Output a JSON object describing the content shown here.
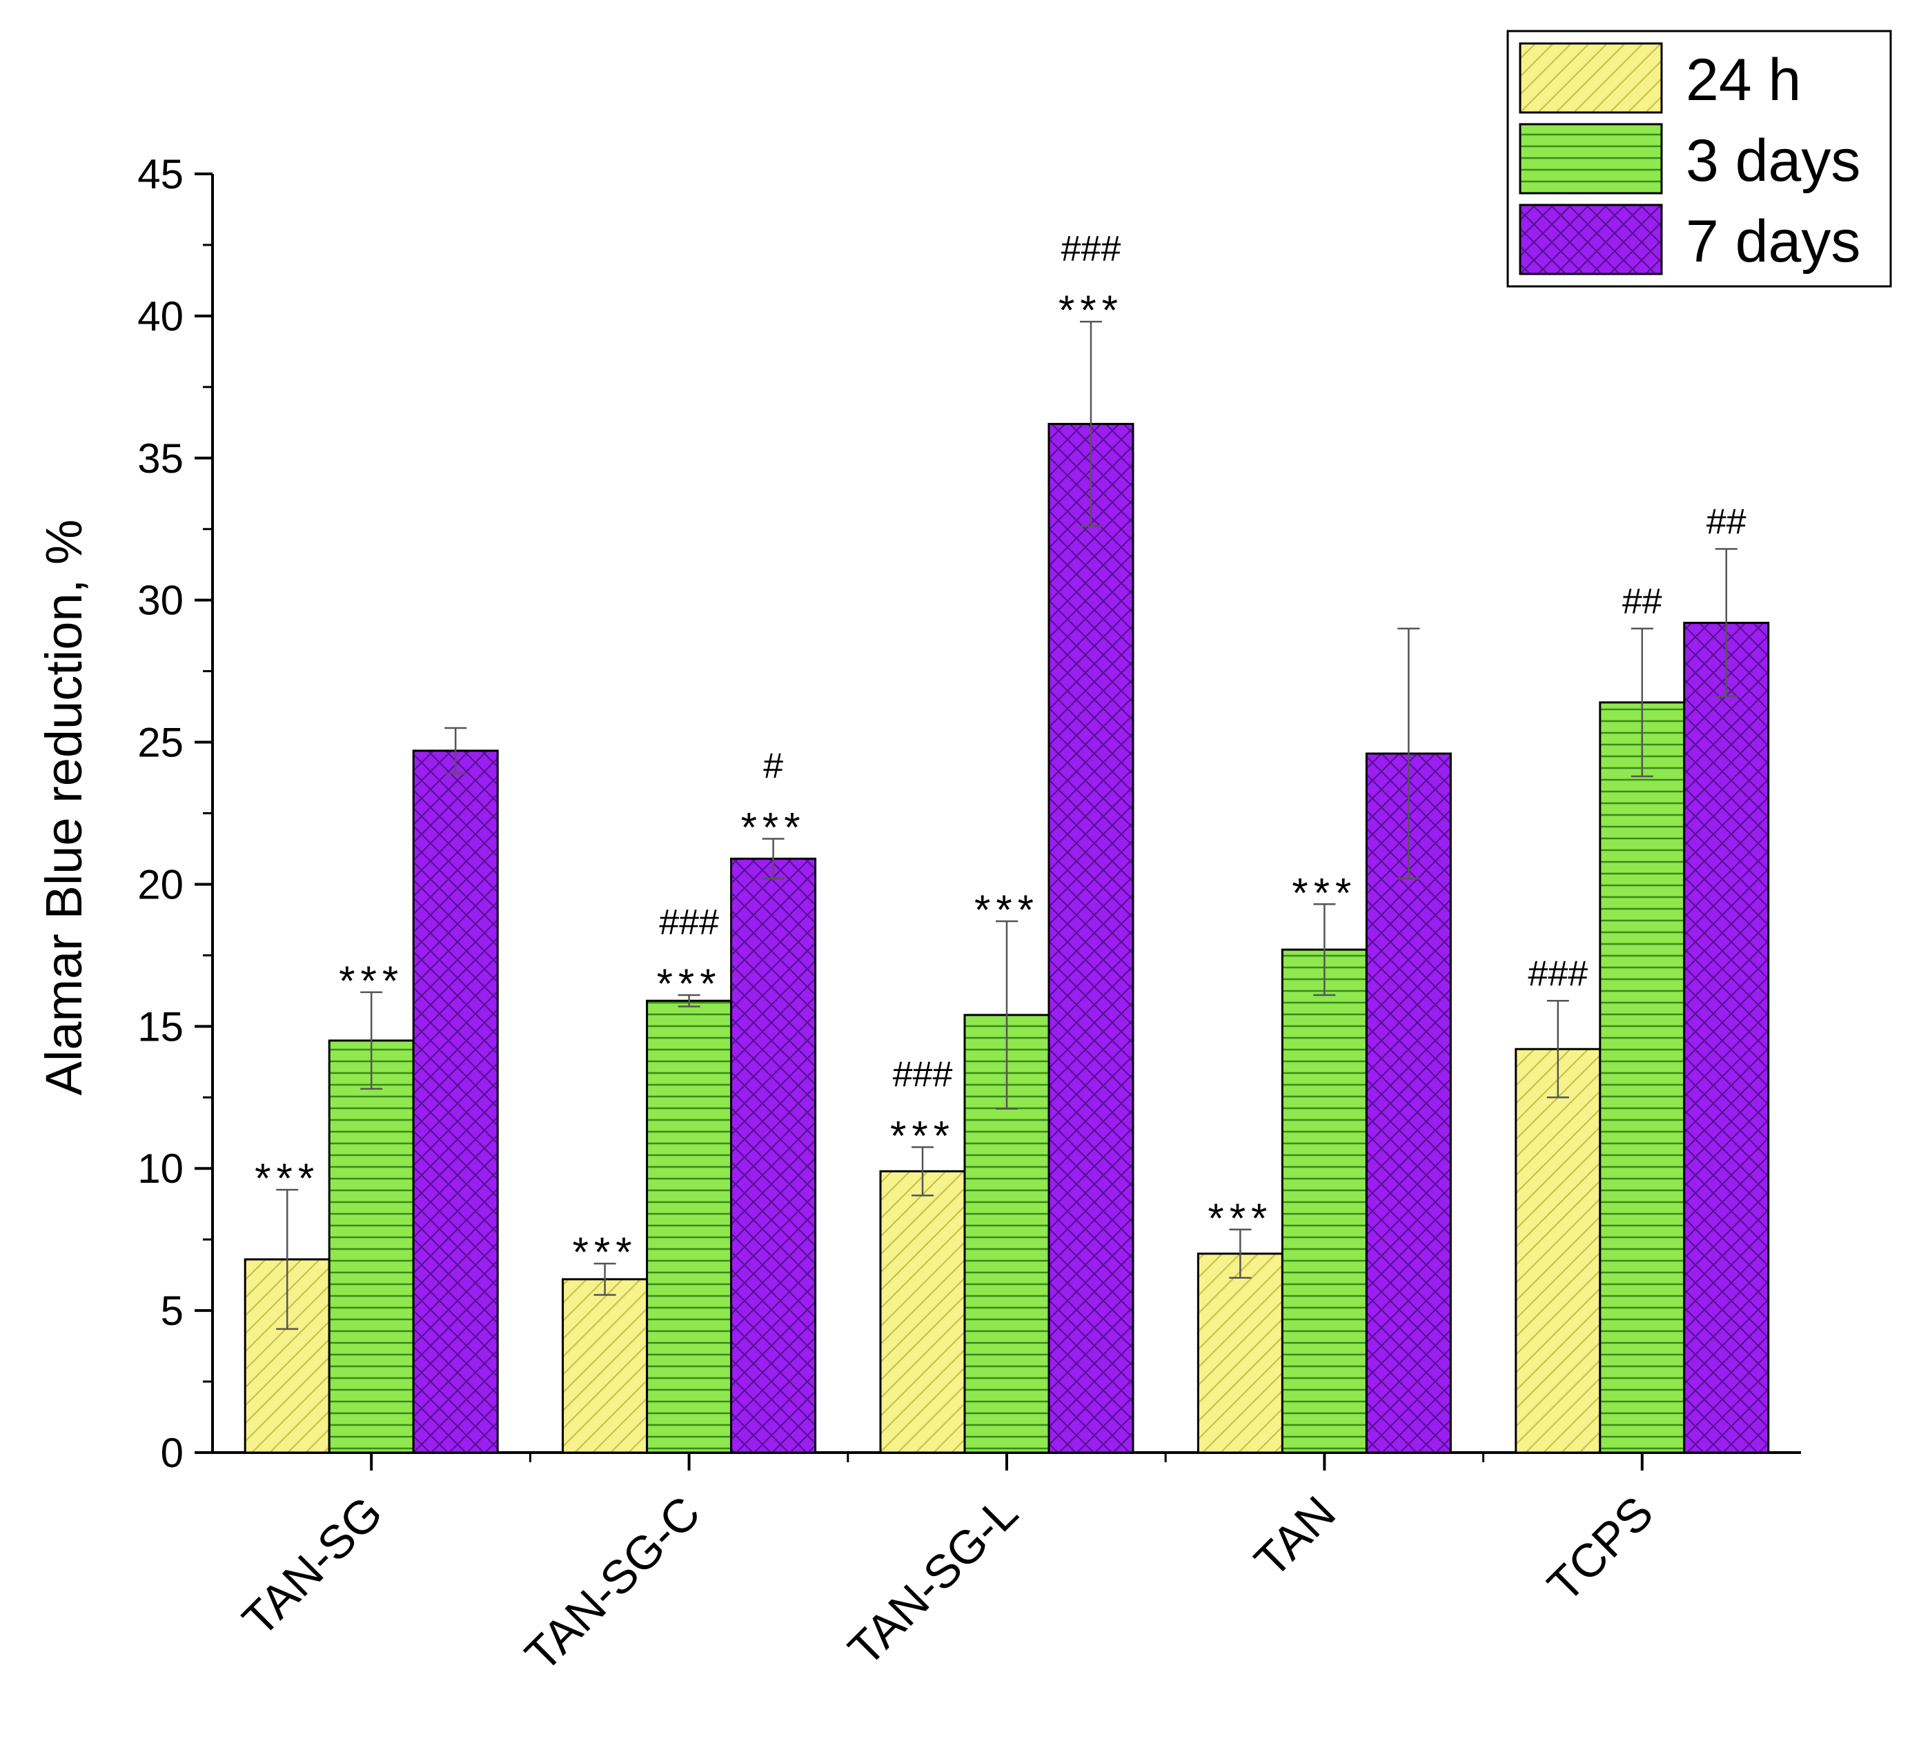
{
  "chart_data": {
    "type": "bar",
    "title": "",
    "xlabel": "",
    "ylabel": "Alamar Blue reduction, %",
    "ylim": [
      0,
      45
    ],
    "yticks": [
      "0",
      "5",
      "10",
      "15",
      "20",
      "25",
      "30",
      "35",
      "40",
      "45"
    ],
    "grid": false,
    "legend_position": "top-right",
    "categories": [
      "TAN-SG",
      "TAN-SG-C",
      "TAN-SG-L",
      "TAN",
      "TCPS"
    ],
    "series": [
      {
        "name": "24 h",
        "color": "#f6f28c",
        "pattern": "diagonal-hatch",
        "values": [
          6.8,
          6.1,
          9.9,
          7.0,
          14.2
        ],
        "errors": [
          2.45,
          0.55,
          0.85,
          0.85,
          1.7
        ],
        "annotations": [
          [
            "***"
          ],
          [
            "***"
          ],
          [
            "###",
            "***"
          ],
          [
            "***"
          ],
          [
            "###"
          ]
        ]
      },
      {
        "name": "3 days",
        "color": "#8fe84e",
        "pattern": "horizontal-lines",
        "values": [
          14.5,
          15.9,
          15.4,
          17.7,
          26.4
        ],
        "errors": [
          1.7,
          0.2,
          3.3,
          1.6,
          2.6
        ],
        "annotations": [
          [
            "***"
          ],
          [
            "###",
            "***"
          ],
          [
            "***"
          ],
          [
            "***"
          ],
          [
            "##"
          ]
        ]
      },
      {
        "name": "7 days",
        "color": "#9b1ff0",
        "pattern": "crosshatch",
        "values": [
          24.7,
          20.9,
          36.2,
          24.6,
          29.2
        ],
        "errors": [
          0.8,
          0.7,
          3.6,
          4.4,
          2.6
        ],
        "annotations": [
          [],
          [
            "#",
            "***"
          ],
          [
            "###",
            "***"
          ],
          [],
          [
            "##"
          ]
        ]
      }
    ]
  }
}
